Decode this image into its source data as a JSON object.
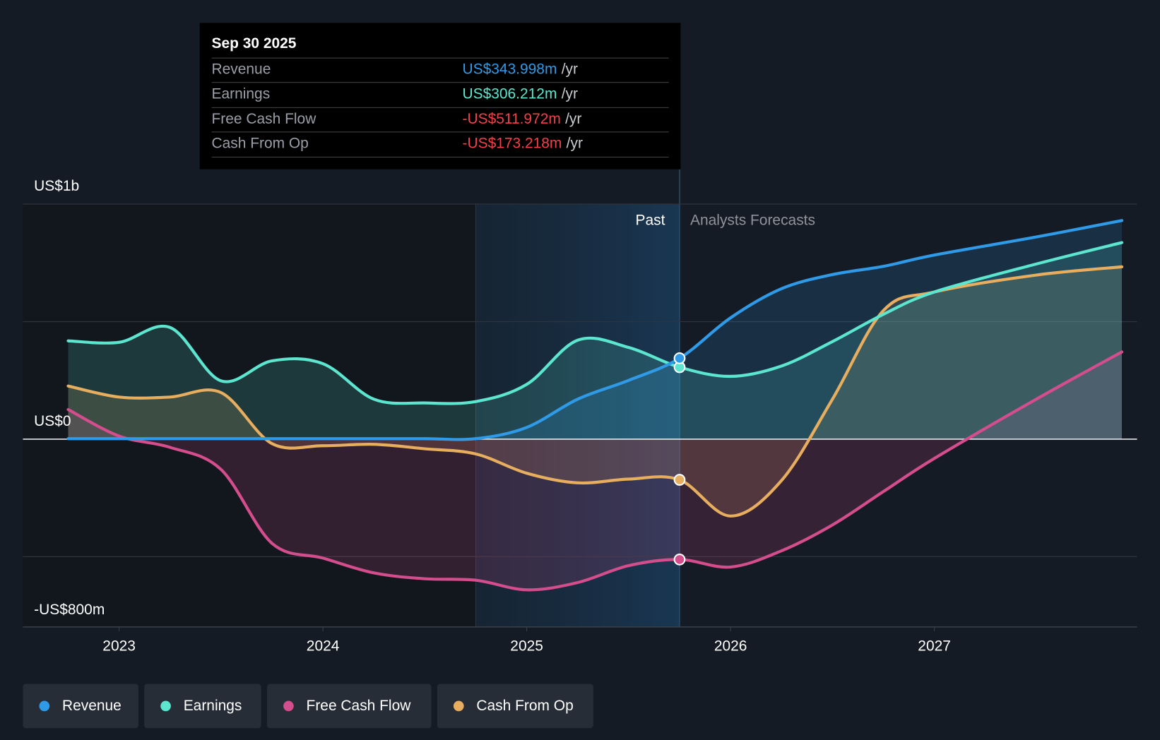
{
  "tooltip": {
    "date": "Sep 30 2025",
    "rows": [
      {
        "label": "Revenue",
        "value": "US$343.998m",
        "unit": "/yr",
        "color": "#2f9be8"
      },
      {
        "label": "Earnings",
        "value": "US$306.212m",
        "unit": "/yr",
        "color": "#5ce6cf"
      },
      {
        "label": "Free Cash Flow",
        "value": "-US$511.972m",
        "unit": "/yr",
        "color": "#f0414a"
      },
      {
        "label": "Cash From Op",
        "value": "-US$173.218m",
        "unit": "/yr",
        "color": "#f0414a"
      }
    ]
  },
  "legend": [
    {
      "label": "Revenue",
      "color": "#2f9be8"
    },
    {
      "label": "Earnings",
      "color": "#5ce6cf"
    },
    {
      "label": "Free Cash Flow",
      "color": "#d44d8c"
    },
    {
      "label": "Cash From Op",
      "color": "#e8ae5f"
    }
  ],
  "chart_data": {
    "type": "line",
    "ylabel_top": "US$1b",
    "ylabel_zero": "US$0",
    "ylabel_bottom": "-US$800m",
    "ylim": [
      -800,
      1000
    ],
    "xlim": [
      2022.55,
      2027.92
    ],
    "x_ticks": [
      2023,
      2024,
      2025,
      2026,
      2027
    ],
    "x_tick_labels": [
      "2023",
      "2024",
      "2025",
      "2026",
      "2027"
    ],
    "past_label": "Past",
    "forecast_label": "Analysts Forecasts",
    "past_start": 2024.75,
    "divider": 2025.75,
    "x": [
      2022.75,
      2023,
      2023.25,
      2023.5,
      2023.75,
      2024,
      2024.25,
      2024.5,
      2024.75,
      2025,
      2025.25,
      2025.5,
      2025.75,
      2026,
      2026.25,
      2026.5,
      2026.75,
      2027,
      2027.5,
      2027.92
    ],
    "series": [
      {
        "name": "Revenue",
        "color": "#2f9be8",
        "values": [
          2,
          2,
          2,
          2,
          2,
          2,
          2,
          2,
          2,
          50,
          170,
          250,
          344,
          516,
          640,
          700,
          735,
          783,
          860,
          930
        ]
      },
      {
        "name": "Earnings",
        "color": "#5ce6cf",
        "values": [
          418,
          412,
          475,
          248,
          333,
          321,
          170,
          154,
          160,
          233,
          421,
          390,
          306,
          267,
          311,
          415,
          531,
          626,
          745,
          836
        ]
      },
      {
        "name": "Free Cash Flow",
        "color": "#d44d8c",
        "values": [
          126,
          13,
          -35,
          -129,
          -443,
          -506,
          -569,
          -594,
          -600,
          -641,
          -610,
          -538,
          -512,
          -544,
          -475,
          -365,
          -223,
          -82,
          170,
          371
        ]
      },
      {
        "name": "Cash From Op",
        "color": "#e8ae5f",
        "values": [
          226,
          179,
          179,
          198,
          -19,
          -28,
          -22,
          -41,
          -63,
          -145,
          -186,
          -170,
          -173,
          -327,
          -176,
          170,
          547,
          626,
          698,
          733
        ]
      }
    ]
  }
}
